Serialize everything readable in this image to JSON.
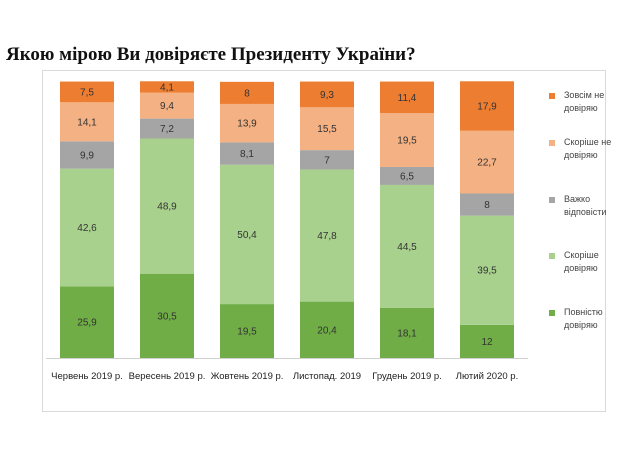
{
  "title": "Якою мірою Ви довіряєте Президенту України?",
  "chart_data": {
    "type": "bar",
    "stacked": true,
    "categories": [
      "Червень 2019 р.",
      "Вересень 2019 р.",
      "Жовтень 2019 р.",
      "Листопад. 2019",
      "Грудень 2019 р.",
      "Лютий 2020 р."
    ],
    "series": [
      {
        "name": "Повністю довіряю",
        "legend_lines": [
          "Повністю",
          "довіряю"
        ],
        "color": "#70ad47",
        "values": [
          25.9,
          30.5,
          19.5,
          20.4,
          18.1,
          12
        ],
        "labels": [
          "25,9",
          "30,5",
          "19,5",
          "20,4",
          "18,1",
          "12"
        ]
      },
      {
        "name": "Скоріше довіряю",
        "legend_lines": [
          "Скоріше",
          "довіряю"
        ],
        "color": "#a9d18e",
        "values": [
          42.6,
          48.9,
          50.4,
          47.8,
          44.5,
          39.5
        ],
        "labels": [
          "42,6",
          "48,9",
          "50,4",
          "47,8",
          "44,5",
          "39,5"
        ]
      },
      {
        "name": "Важко відповісти",
        "legend_lines": [
          "Важко",
          "відповісти"
        ],
        "color": "#a5a5a5",
        "values": [
          9.9,
          7.2,
          8.1,
          7,
          6.5,
          8
        ],
        "labels": [
          "9,9",
          "7,2",
          "8,1",
          "7",
          "6,5",
          "8"
        ]
      },
      {
        "name": "Скоріше не довіряю",
        "legend_lines": [
          "Скоріше  не",
          "довіряю"
        ],
        "color": "#f4b183",
        "values": [
          14.1,
          9.4,
          13.9,
          15.5,
          19.5,
          22.7
        ],
        "labels": [
          "14,1",
          "9,4",
          "13,9",
          "15,5",
          "19,5",
          "22,7"
        ]
      },
      {
        "name": "Зовсім не довіряю",
        "legend_lines": [
          "Зовсім не",
          "довіряю"
        ],
        "color": "#ed7d31",
        "values": [
          7.5,
          4.1,
          8,
          9.3,
          11.4,
          17.9
        ],
        "labels": [
          "7,5",
          "4,1",
          "8",
          "9,3",
          "11,4",
          "17,9"
        ]
      }
    ],
    "ylim": [
      0,
      100
    ],
    "grid": false,
    "legend_position": "right"
  }
}
